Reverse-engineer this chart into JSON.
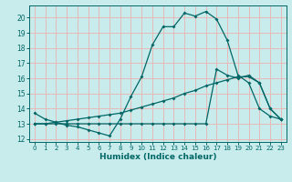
{
  "xlabel": "Humidex (Indice chaleur)",
  "background_color": "#c8ecec",
  "grid_color": "#e8b8b8",
  "line_color": "#006666",
  "xlim": [
    -0.5,
    23.5
  ],
  "ylim": [
    11.8,
    20.8
  ],
  "xticks": [
    0,
    1,
    2,
    3,
    4,
    5,
    6,
    7,
    8,
    9,
    10,
    11,
    12,
    13,
    14,
    15,
    16,
    17,
    18,
    19,
    20,
    21,
    22,
    23
  ],
  "yticks": [
    12,
    13,
    14,
    15,
    16,
    17,
    18,
    19,
    20
  ],
  "curve1_x": [
    0,
    1,
    2,
    3,
    4,
    5,
    6,
    7,
    8,
    9,
    10,
    11,
    12,
    13,
    14,
    15,
    16,
    17,
    18,
    19,
    20,
    21,
    22,
    23
  ],
  "curve1_y": [
    13.7,
    13.3,
    13.1,
    12.9,
    12.8,
    12.6,
    12.4,
    12.2,
    13.3,
    14.8,
    16.1,
    18.2,
    19.4,
    19.4,
    20.3,
    20.1,
    20.4,
    19.9,
    18.5,
    16.2,
    15.7,
    14.0,
    13.5,
    13.3
  ],
  "curve2_x": [
    0,
    1,
    2,
    3,
    4,
    5,
    6,
    7,
    8,
    9,
    10,
    11,
    12,
    13,
    14,
    15,
    16,
    17,
    18,
    19,
    20,
    21,
    22,
    23
  ],
  "curve2_y": [
    13.0,
    13.0,
    13.0,
    13.0,
    13.0,
    13.0,
    13.0,
    13.0,
    13.0,
    13.0,
    13.0,
    13.0,
    13.0,
    13.0,
    13.0,
    13.0,
    13.0,
    16.6,
    16.2,
    16.0,
    16.2,
    15.7,
    14.0,
    13.3
  ],
  "curve3_x": [
    0,
    1,
    2,
    3,
    4,
    5,
    6,
    7,
    8,
    9,
    10,
    11,
    12,
    13,
    14,
    15,
    16,
    17,
    18,
    19,
    20,
    21,
    22,
    23
  ],
  "curve3_y": [
    13.0,
    13.0,
    13.1,
    13.2,
    13.3,
    13.4,
    13.5,
    13.6,
    13.7,
    13.9,
    14.1,
    14.3,
    14.5,
    14.7,
    15.0,
    15.2,
    15.5,
    15.7,
    15.9,
    16.1,
    16.1,
    15.7,
    14.0,
    13.3
  ]
}
